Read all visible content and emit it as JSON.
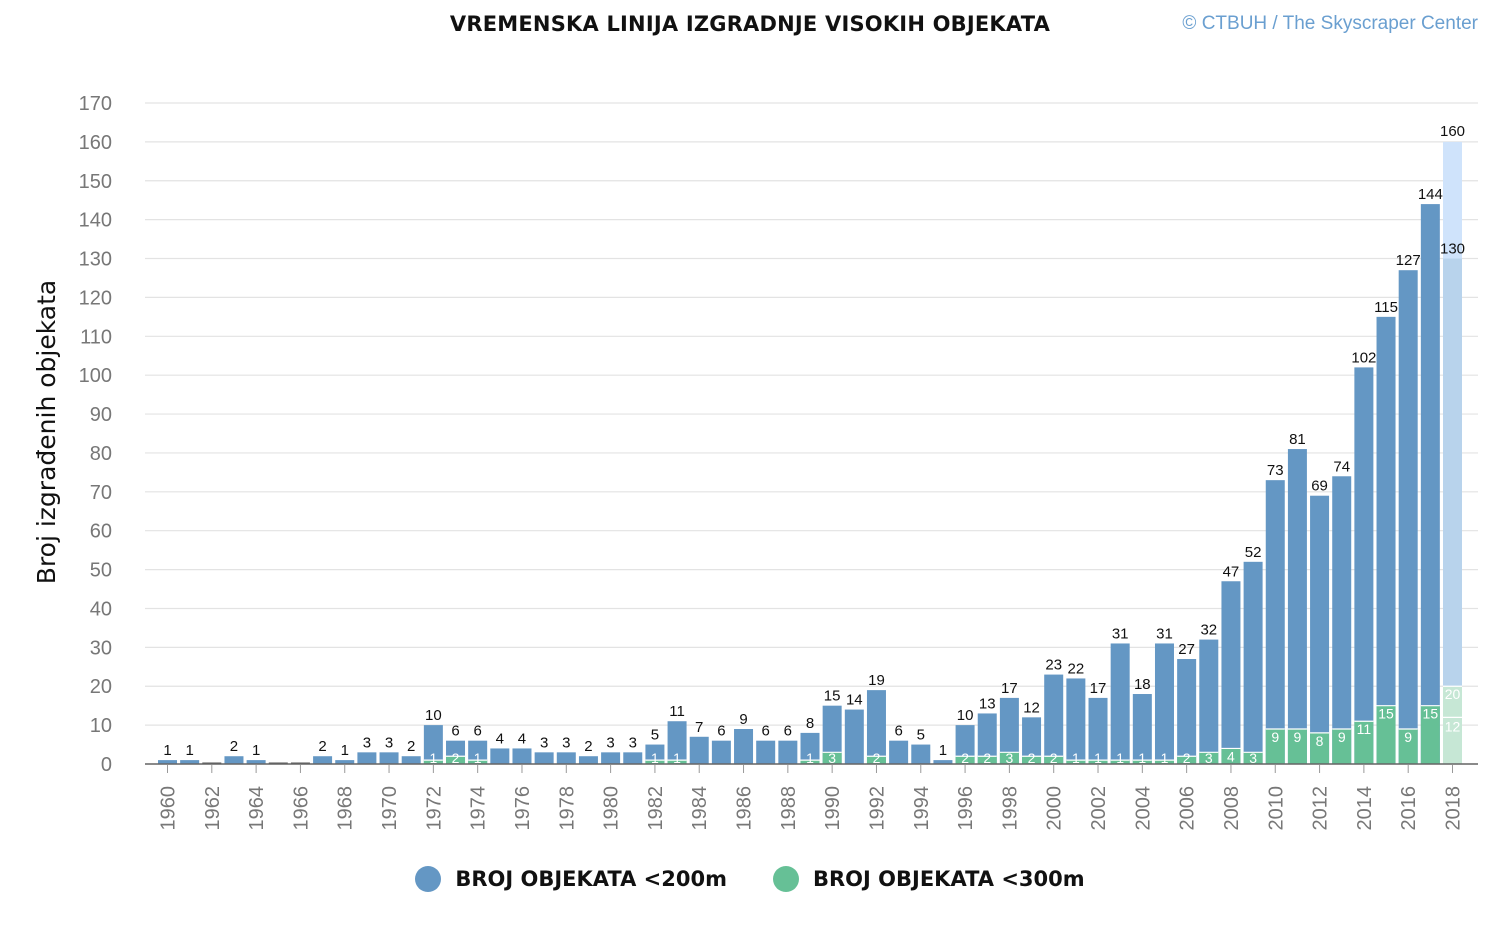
{
  "title": "VREMENSKA LINIJA IZGRADNJE VISOKIH OBJEKATA",
  "credit": "© CTBUH / The Skyscraper Center",
  "legend": [
    {
      "label": "BROJ OBJEKATA <200m",
      "color": "#6497c4"
    },
    {
      "label": "BROJ OBJEKATA <300m",
      "color": "#66c096"
    }
  ],
  "colors": {
    "blue": "#6497c4",
    "green": "#66c096",
    "dark": "#555555",
    "projected_blue": "#b8d3ec",
    "projected_top": "#cfe3fb",
    "projected_green": "#c6e7d5",
    "grid": "#e3e3e3",
    "axis_text": "#777777"
  },
  "chart_data": {
    "type": "bar",
    "stacked": true,
    "title": "VREMENSKA LINIJA IZGRADNJE VISOKIH OBJEKATA",
    "ylabel": "Broj izgrađenih objekata",
    "xlabel": "",
    "ylim": [
      0,
      170
    ],
    "yticks": [
      0,
      10,
      20,
      30,
      40,
      50,
      60,
      70,
      80,
      90,
      100,
      110,
      120,
      130,
      140,
      150,
      160,
      170
    ],
    "grid": true,
    "legend_position": "bottom",
    "x_tick_labels": [
      "1960",
      "1962",
      "1964",
      "1966",
      "1968",
      "1970",
      "1972",
      "1974",
      "1976",
      "1978",
      "1980",
      "1982",
      "1984",
      "1986",
      "1988",
      "1990",
      "1992",
      "1994",
      "1996",
      "1998",
      "2000",
      "2002",
      "2004",
      "2006",
      "2008",
      "2010",
      "2012",
      "2014",
      "2016",
      "2018"
    ],
    "categories": [
      "1960",
      "1961",
      "1962",
      "1963",
      "1964",
      "1965",
      "1966",
      "1967",
      "1968",
      "1969",
      "1970",
      "1971",
      "1972",
      "1973",
      "1974",
      "1975",
      "1976",
      "1977",
      "1978",
      "1979",
      "1980",
      "1981",
      "1982",
      "1983",
      "1984",
      "1985",
      "1986",
      "1987",
      "1988",
      "1989",
      "1990",
      "1991",
      "1992",
      "1993",
      "1994",
      "1995",
      "1996",
      "1997",
      "1998",
      "1999",
      "2000",
      "2001",
      "2002",
      "2003",
      "2004",
      "2005",
      "2006",
      "2007",
      "2008",
      "2009",
      "2010",
      "2011",
      "2012",
      "2013",
      "2014",
      "2015",
      "2016",
      "2017",
      "2018"
    ],
    "series": [
      {
        "name": "BROJ OBJEKATA <200m",
        "values": [
          1,
          1,
          0,
          2,
          1,
          0,
          0,
          2,
          1,
          3,
          3,
          2,
          10,
          6,
          6,
          4,
          4,
          3,
          3,
          2,
          3,
          3,
          5,
          11,
          7,
          6,
          9,
          6,
          6,
          8,
          15,
          14,
          19,
          6,
          5,
          1,
          10,
          13,
          17,
          12,
          23,
          22,
          17,
          31,
          18,
          31,
          27,
          32,
          47,
          52,
          73,
          81,
          69,
          74,
          102,
          115,
          127,
          144,
          130
        ]
      },
      {
        "name": "BROJ OBJEKATA <300m",
        "values": [
          0,
          0,
          0,
          0,
          0,
          0,
          0,
          0,
          0,
          0,
          0,
          0,
          1,
          2,
          1,
          0,
          0,
          0,
          0,
          0,
          0,
          0,
          1,
          1,
          0,
          0,
          0,
          0,
          0,
          1,
          3,
          0,
          2,
          0,
          0,
          0,
          2,
          2,
          3,
          2,
          2,
          1,
          1,
          1,
          1,
          1,
          2,
          3,
          4,
          3,
          9,
          9,
          8,
          9,
          11,
          15,
          9,
          15,
          20
        ]
      }
    ],
    "secondary_values": [
      {
        "x": "2018",
        "value": 12
      }
    ],
    "projected_total": [
      {
        "x": "2018",
        "value": 160
      }
    ]
  }
}
